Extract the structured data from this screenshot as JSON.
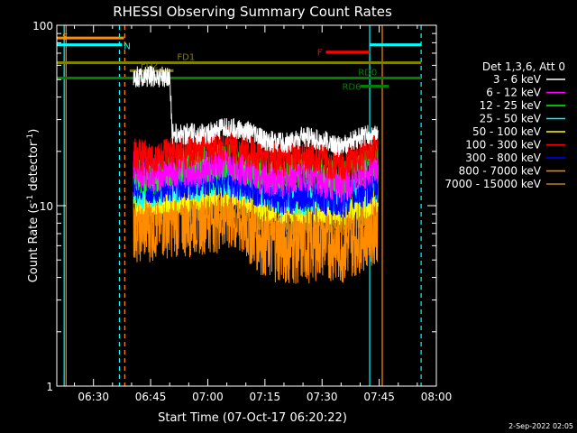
{
  "chart_data": {
    "type": "line",
    "title": "RHESSI Observing Summary Count Rates",
    "xlabel": "Start Time (07-Oct-17 06:20:22)",
    "ylabel_main": "Count Rate (s",
    "ylabel_sup1": "-1",
    "ylabel_mid": " detector",
    "ylabel_sup2": "-1",
    "ylabel_end": ")",
    "yscale": "log",
    "ylim": [
      1,
      100
    ],
    "xlim_min": [
      20.37,
      120
    ],
    "x_ticks": [
      {
        "label": "06:30",
        "minute": 30
      },
      {
        "label": "06:45",
        "minute": 45
      },
      {
        "label": "07:00",
        "minute": 60
      },
      {
        "label": "07:15",
        "minute": 75
      },
      {
        "label": "07:30",
        "minute": 90
      },
      {
        "label": "07:45",
        "minute": 105
      },
      {
        "label": "08:00",
        "minute": 120
      }
    ],
    "y_ticks": [
      {
        "label": "1",
        "value": 1
      },
      {
        "label": "10",
        "value": 10
      },
      {
        "label": "100",
        "value": 100
      }
    ],
    "legend_header": "Det 1,3,6, Att 0",
    "data_start_min": 40.5,
    "data_end_min": 104.7,
    "series": [
      {
        "name": "3 - 6 keV",
        "color": "#ffffff",
        "points": [
          [
            40.5,
            52
          ],
          [
            45,
            52
          ],
          [
            50,
            52
          ],
          [
            50.6,
            25
          ],
          [
            55,
            25
          ],
          [
            60,
            25
          ],
          [
            65,
            27
          ],
          [
            70,
            26
          ],
          [
            75,
            23
          ],
          [
            80,
            22
          ],
          [
            85,
            24
          ],
          [
            90,
            23
          ],
          [
            95,
            21
          ],
          [
            100,
            24
          ],
          [
            104.7,
            25
          ]
        ]
      },
      {
        "name": "6 - 12 keV",
        "color": "#ff00ff",
        "points": [
          [
            40.5,
            16
          ],
          [
            45,
            15
          ],
          [
            50,
            15
          ],
          [
            55,
            15.5
          ],
          [
            60,
            16
          ],
          [
            65,
            17
          ],
          [
            70,
            16
          ],
          [
            75,
            14
          ],
          [
            80,
            14
          ],
          [
            85,
            15
          ],
          [
            90,
            14
          ],
          [
            95,
            13
          ],
          [
            100,
            15
          ],
          [
            104.7,
            16
          ]
        ]
      },
      {
        "name": "12 - 25 keV",
        "color": "#00ff00",
        "points": [
          [
            40.5,
            15
          ],
          [
            45,
            14
          ],
          [
            50,
            16
          ],
          [
            55,
            17
          ],
          [
            60,
            17
          ],
          [
            65,
            18
          ],
          [
            70,
            16
          ],
          [
            75,
            15
          ],
          [
            80,
            15
          ],
          [
            85,
            16
          ],
          [
            90,
            15
          ],
          [
            95,
            14
          ],
          [
            100,
            16
          ],
          [
            104.7,
            18
          ]
        ]
      },
      {
        "name": "25 - 50 keV",
        "color": "#00ffff",
        "points": [
          [
            40.5,
            12
          ],
          [
            45,
            12
          ],
          [
            50,
            13
          ],
          [
            55,
            13
          ],
          [
            60,
            13.5
          ],
          [
            65,
            14
          ],
          [
            70,
            13
          ],
          [
            75,
            12
          ],
          [
            80,
            11
          ],
          [
            85,
            11
          ],
          [
            90,
            11.5
          ],
          [
            95,
            11
          ],
          [
            100,
            12
          ],
          [
            104.7,
            13
          ]
        ]
      },
      {
        "name": "50 - 100 keV",
        "color": "#ffff00",
        "points": [
          [
            40.5,
            11
          ],
          [
            45,
            11
          ],
          [
            50,
            11.5
          ],
          [
            55,
            11.5
          ],
          [
            60,
            12
          ],
          [
            65,
            12.5
          ],
          [
            70,
            11.5
          ],
          [
            75,
            10
          ],
          [
            80,
            10
          ],
          [
            85,
            10
          ],
          [
            90,
            10
          ],
          [
            95,
            9.5
          ],
          [
            100,
            10.5
          ],
          [
            104.7,
            11
          ]
        ]
      },
      {
        "name": "100 - 300 keV",
        "color": "#ff0000",
        "points": [
          [
            40.5,
            19
          ],
          [
            45,
            18
          ],
          [
            50,
            19
          ],
          [
            55,
            20
          ],
          [
            60,
            21
          ],
          [
            65,
            22
          ],
          [
            70,
            20
          ],
          [
            75,
            19
          ],
          [
            80,
            18
          ],
          [
            85,
            19
          ],
          [
            90,
            18
          ],
          [
            95,
            17
          ],
          [
            100,
            19
          ],
          [
            104.7,
            21
          ]
        ]
      },
      {
        "name": "300 - 800 keV",
        "color": "#0000ff",
        "points": [
          [
            40.5,
            13
          ],
          [
            45,
            13
          ],
          [
            50,
            13
          ],
          [
            55,
            13.5
          ],
          [
            60,
            14
          ],
          [
            65,
            14
          ],
          [
            70,
            13
          ],
          [
            75,
            12
          ],
          [
            80,
            11
          ],
          [
            85,
            11.5
          ],
          [
            90,
            11
          ],
          [
            95,
            10.5
          ],
          [
            100,
            12
          ],
          [
            104.7,
            13
          ]
        ]
      },
      {
        "name": "800 - 7000 keV",
        "color": "#ff8c00",
        "points": [
          [
            40.5,
            8
          ],
          [
            45,
            8
          ],
          [
            50,
            8.5
          ],
          [
            55,
            8.5
          ],
          [
            60,
            9
          ],
          [
            65,
            9
          ],
          [
            70,
            8
          ],
          [
            75,
            6.5
          ],
          [
            80,
            6
          ],
          [
            85,
            6
          ],
          [
            90,
            6.5
          ],
          [
            95,
            6
          ],
          [
            100,
            7
          ],
          [
            104.7,
            8
          ]
        ]
      },
      {
        "name": "7000 - 15000 keV",
        "color": "#b8860b",
        "points": [
          [
            40.5,
            9.5
          ],
          [
            45,
            9.5
          ],
          [
            50,
            10
          ],
          [
            55,
            10
          ],
          [
            60,
            10.5
          ],
          [
            65,
            10.5
          ],
          [
            70,
            10
          ],
          [
            75,
            9
          ],
          [
            80,
            8.5
          ],
          [
            85,
            8.5
          ],
          [
            90,
            9
          ],
          [
            95,
            8.5
          ],
          [
            100,
            9.5
          ],
          [
            104.7,
            10
          ]
        ]
      }
    ],
    "flags": [
      {
        "label": "S",
        "color": "#ff8c00",
        "x0": 20.4,
        "x1": 38,
        "y": 85
      },
      {
        "label": "N",
        "color": "#00ffff",
        "x0": 20.4,
        "x1": 37.5,
        "y": 78
      },
      {
        "label": "FD1",
        "color": "#808000",
        "x0": 20.4,
        "x1": 116,
        "y": 62
      },
      {
        "label": "FD2",
        "color": "#808000",
        "x0": 39.5,
        "x1": 51,
        "y": 56
      },
      {
        "label": "RD0",
        "color": "#008000",
        "x0": 20.4,
        "x1": 116,
        "y": 51
      },
      {
        "label": "RD6",
        "color": "#008000",
        "x0": 100,
        "x1": 107.5,
        "y": 46
      },
      {
        "label": "F",
        "color": "#ff0000",
        "x0": 91,
        "x1": 102.5,
        "y": 71
      },
      {
        "label": "",
        "color": "#00ffff",
        "x0": 102.5,
        "x1": 116,
        "y": 78
      }
    ],
    "vlines_solid": [
      {
        "color": "#00ffff",
        "minute": 22.3
      },
      {
        "color": "#ff8c00",
        "minute": 22.8
      },
      {
        "color": "#00ffff",
        "minute": 102.5
      },
      {
        "color": "#ff8c00",
        "minute": 105.8
      }
    ],
    "vlines_dashed": [
      {
        "color": "#00ffff",
        "minute": 36.8
      },
      {
        "color": "#ff8c00",
        "minute": 38.2
      },
      {
        "color": "#00ffff",
        "minute": 116
      }
    ]
  },
  "footer": {
    "timestamp": "2-Sep-2022 02:05"
  }
}
